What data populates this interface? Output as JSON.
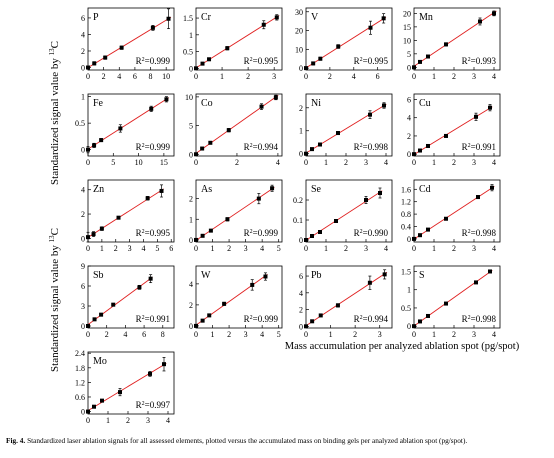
{
  "figure": {
    "ylabel": "Standardized signal value by",
    "ylabel_isotope_mass": "13",
    "ylabel_isotope_element": "C",
    "xlabel": "Mass accumulation per analyzed ablation spot (pg/spot)",
    "caption_label": "Fig. 4.",
    "caption_text": " Standardized laser ablation signals for all assessed elements, plotted versus the accumulated mass on binding gels per analyzed ablation spot (pg/spot).",
    "r2_prefix": "R",
    "r2_exp": "2",
    "colors": {
      "fit_line": "#e02020",
      "points": "#000000",
      "axes": "#000000"
    }
  },
  "chart_data": [
    {
      "type": "scatter",
      "element": "P",
      "xlim": [
        0,
        11
      ],
      "xticks": [
        0,
        2,
        4,
        6,
        8,
        10
      ],
      "ylim": [
        -0.3,
        7.2
      ],
      "yticks": [
        0,
        2,
        4,
        6
      ],
      "x": [
        0,
        0.8,
        2.2,
        4.3,
        8.3,
        10.3
      ],
      "y": [
        0,
        0.5,
        1.2,
        2.4,
        4.8,
        5.9
      ],
      "yerr": [
        0.15,
        0.2,
        0.2,
        0.2,
        0.3,
        1.2
      ],
      "r2": "0.999"
    },
    {
      "type": "scatter",
      "element": "Cr",
      "xlim": [
        0,
        3.3
      ],
      "xticks": [
        0,
        1,
        2,
        3
      ],
      "ylim": [
        -0.05,
        1.8
      ],
      "yticks": [
        0,
        0.5,
        1,
        1.5
      ],
      "x": [
        0,
        0.25,
        0.5,
        1.2,
        2.6,
        3.1
      ],
      "y": [
        0,
        0.14,
        0.27,
        0.6,
        1.3,
        1.52
      ],
      "yerr": [
        0.03,
        0.03,
        0.03,
        0.05,
        0.12,
        0.08
      ],
      "r2": "0.995"
    },
    {
      "type": "scatter",
      "element": "V",
      "xlim": [
        0,
        7.2
      ],
      "xticks": [
        0,
        2,
        4,
        6
      ],
      "ylim": [
        -1,
        32
      ],
      "yticks": [
        0,
        10,
        20,
        30
      ],
      "x": [
        0,
        0.6,
        1.2,
        2.7,
        5.4,
        6.5
      ],
      "y": [
        0,
        2.5,
        5,
        11.5,
        21.5,
        26.5
      ],
      "yerr": [
        0.5,
        0.8,
        0.8,
        1,
        3.5,
        2.5
      ],
      "r2": "0.995"
    },
    {
      "type": "scatter",
      "element": "Mn",
      "xlim": [
        0,
        4.3
      ],
      "xticks": [
        0,
        1,
        2,
        3,
        4
      ],
      "ylim": [
        -1,
        22
      ],
      "yticks": [
        0,
        5,
        10,
        15,
        20
      ],
      "x": [
        0,
        0.3,
        0.7,
        1.6,
        3.3,
        4
      ],
      "y": [
        0,
        2,
        4,
        8.5,
        17,
        20
      ],
      "yerr": [
        0.3,
        0.4,
        0.4,
        0.6,
        1.3,
        0.9
      ],
      "r2": "0.993"
    },
    {
      "type": "scatter",
      "element": "Fe",
      "xlim": [
        0,
        17
      ],
      "xticks": [
        0,
        5,
        10,
        15
      ],
      "ylim": [
        -0.12,
        1.05
      ],
      "yticks": [
        0,
        0.5,
        1
      ],
      "x": [
        0,
        1.2,
        2.6,
        6.4,
        12.5,
        15.5
      ],
      "y": [
        0,
        0.08,
        0.18,
        0.4,
        0.77,
        0.95
      ],
      "yerr": [
        0.06,
        0.04,
        0.03,
        0.07,
        0.05,
        0.05
      ],
      "r2": "0.999"
    },
    {
      "type": "scatter",
      "element": "Co",
      "xlim": [
        0,
        4.2
      ],
      "xticks": [
        0,
        2,
        4
      ],
      "ylim": [
        -0.3,
        10.5
      ],
      "yticks": [
        0,
        5,
        10
      ],
      "x": [
        0,
        0.3,
        0.7,
        1.6,
        3.2,
        3.9
      ],
      "y": [
        0,
        1,
        2,
        4.2,
        8.3,
        9.9
      ],
      "yerr": [
        0.1,
        0.2,
        0.2,
        0.3,
        0.5,
        0.4
      ],
      "r2": "0.994"
    },
    {
      "type": "scatter",
      "element": "Ni",
      "xlim": [
        0,
        4.3
      ],
      "xticks": [
        0,
        1,
        2,
        3,
        4
      ],
      "ylim": [
        -0.1,
        2.6
      ],
      "yticks": [
        0,
        1,
        2
      ],
      "x": [
        0,
        0.3,
        0.7,
        1.6,
        3.2,
        3.9
      ],
      "y": [
        0,
        0.2,
        0.4,
        0.9,
        1.7,
        2.1
      ],
      "yerr": [
        0.03,
        0.05,
        0.05,
        0.07,
        0.17,
        0.12
      ],
      "r2": "0.998"
    },
    {
      "type": "scatter",
      "element": "Cu",
      "xlim": [
        0,
        4.3
      ],
      "xticks": [
        0,
        1,
        2,
        3,
        4
      ],
      "ylim": [
        -0.2,
        6.6
      ],
      "yticks": [
        0,
        2,
        4,
        6
      ],
      "x": [
        0,
        0.3,
        0.7,
        1.6,
        3.1,
        3.8
      ],
      "y": [
        0,
        0.4,
        0.9,
        2,
        4.1,
        5.1
      ],
      "yerr": [
        0.1,
        0.15,
        0.15,
        0.15,
        0.4,
        0.35
      ],
      "r2": "0.991"
    },
    {
      "type": "scatter",
      "element": "Zn",
      "xlim": [
        0,
        6.2
      ],
      "xticks": [
        0,
        1,
        2,
        3,
        4,
        5,
        6
      ],
      "ylim": [
        -0.3,
        4.8
      ],
      "yticks": [
        0,
        2,
        4
      ],
      "x": [
        0,
        0.4,
        1,
        2.2,
        4.3,
        5.3
      ],
      "y": [
        0.1,
        0.35,
        0.8,
        1.7,
        3.3,
        3.9
      ],
      "yerr": [
        0.4,
        0.2,
        0.15,
        0.1,
        0.15,
        0.5
      ],
      "r2": "0.995"
    },
    {
      "type": "scatter",
      "element": "As",
      "xlim": [
        0,
        5.2
      ],
      "xticks": [
        0,
        1,
        2,
        3,
        4,
        5
      ],
      "ylim": [
        -0.1,
        2.9
      ],
      "yticks": [
        0,
        1,
        2
      ],
      "x": [
        0,
        0.4,
        0.9,
        1.9,
        3.8,
        4.6
      ],
      "y": [
        0,
        0.2,
        0.45,
        1,
        2,
        2.5
      ],
      "yerr": [
        0.05,
        0.05,
        0.06,
        0.08,
        0.25,
        0.15
      ],
      "r2": "0.999"
    },
    {
      "type": "scatter",
      "element": "Se",
      "xlim": [
        0,
        4.3
      ],
      "xticks": [
        0,
        1,
        2,
        3,
        4
      ],
      "ylim": [
        -0.01,
        0.3
      ],
      "yticks": [
        0,
        0.1,
        0.2
      ],
      "x": [
        0,
        0.3,
        0.7,
        1.5,
        3,
        3.7
      ],
      "y": [
        0,
        0.02,
        0.04,
        0.095,
        0.2,
        0.235
      ],
      "yerr": [
        0.005,
        0.005,
        0.006,
        0.008,
        0.018,
        0.025
      ],
      "r2": "0.990"
    },
    {
      "type": "scatter",
      "element": "Cd",
      "xlim": [
        0,
        4.3
      ],
      "xticks": [
        0,
        1,
        2,
        3,
        4
      ],
      "ylim": [
        -0.1,
        1.9
      ],
      "yticks": [
        0,
        0.4,
        0.8,
        1.2,
        1.6
      ],
      "x": [
        0,
        0.3,
        0.7,
        1.6,
        3.2,
        3.9
      ],
      "y": [
        0,
        0.12,
        0.3,
        0.65,
        1.35,
        1.65
      ],
      "yerr": [
        0.02,
        0.03,
        0.03,
        0.04,
        0.05,
        0.1
      ],
      "r2": "0.998"
    },
    {
      "type": "scatter",
      "element": "Sb",
      "xlim": [
        0,
        9.2
      ],
      "xticks": [
        0,
        2,
        4,
        6,
        8
      ],
      "ylim": [
        -0.3,
        9
      ],
      "yticks": [
        0,
        3,
        6,
        9
      ],
      "x": [
        0,
        0.7,
        1.4,
        2.7,
        5.5,
        6.7
      ],
      "y": [
        0,
        1,
        1.7,
        3.2,
        5.8,
        7.1
      ],
      "yerr": [
        0.1,
        0.15,
        0.2,
        0.2,
        0.3,
        0.6
      ],
      "r2": "0.991"
    },
    {
      "type": "scatter",
      "element": "W",
      "xlim": [
        0,
        5.2
      ],
      "xticks": [
        0,
        1,
        2,
        3,
        4,
        5
      ],
      "ylim": [
        -0.2,
        5.7
      ],
      "yticks": [
        0,
        2,
        4
      ],
      "x": [
        0,
        0.4,
        0.8,
        1.7,
        3.4,
        4.2
      ],
      "y": [
        0,
        0.5,
        1,
        2.1,
        3.9,
        4.7
      ],
      "yerr": [
        0.1,
        0.1,
        0.1,
        0.15,
        0.5,
        0.35
      ],
      "r2": "0.999"
    },
    {
      "type": "scatter",
      "element": "Pb",
      "xlim": [
        0,
        3.5
      ],
      "xticks": [
        0,
        1,
        2,
        3
      ],
      "ylim": [
        -0.2,
        7.2
      ],
      "yticks": [
        0,
        2,
        4,
        6
      ],
      "x": [
        0,
        0.25,
        0.6,
        1.3,
        2.6,
        3.2
      ],
      "y": [
        0,
        0.6,
        1.3,
        2.5,
        5.2,
        6.2
      ],
      "yerr": [
        0.1,
        0.15,
        0.15,
        0.2,
        0.8,
        0.55
      ],
      "r2": "0.994"
    },
    {
      "type": "scatter",
      "element": "S",
      "xlim": [
        0,
        4.3
      ],
      "xticks": [
        0,
        1,
        2,
        3,
        4
      ],
      "ylim": [
        -0.05,
        1.65
      ],
      "yticks": [
        0,
        0.5,
        1,
        1.5
      ],
      "x": [
        0,
        0.3,
        0.7,
        1.6,
        3.1,
        3.8
      ],
      "y": [
        0,
        0.13,
        0.28,
        0.62,
        1.2,
        1.5
      ],
      "yerr": [
        0.02,
        0.02,
        0.02,
        0.03,
        0.03,
        0.03
      ],
      "r2": "0.998"
    },
    {
      "type": "scatter",
      "element": "Mo",
      "xlim": [
        0,
        4.3
      ],
      "xticks": [
        0,
        1,
        2,
        3,
        4
      ],
      "ylim": [
        -0.1,
        2.45
      ],
      "yticks": [
        0,
        0.6,
        1.2,
        1.8,
        2.4
      ],
      "x": [
        0,
        0.3,
        0.7,
        1.6,
        3.1,
        3.8
      ],
      "y": [
        0,
        0.2,
        0.45,
        0.8,
        1.55,
        1.95
      ],
      "yerr": [
        0.03,
        0.05,
        0.05,
        0.15,
        0.1,
        0.28
      ],
      "r2": "0.997"
    }
  ]
}
